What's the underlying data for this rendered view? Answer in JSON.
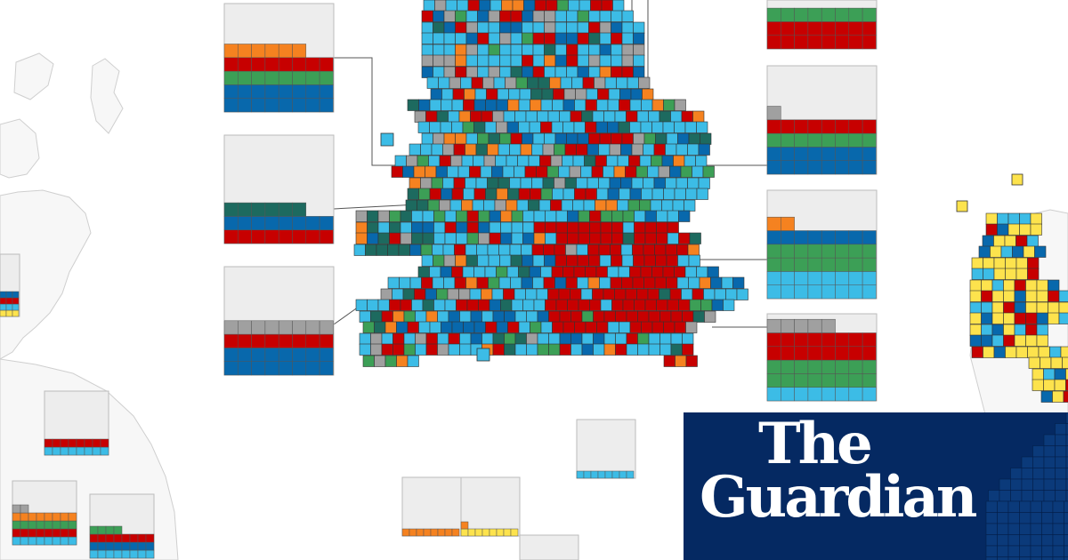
{
  "colors": {
    "conservative": "#0868ac",
    "labour": "#c70000",
    "libdem": "#f7d117",
    "green": "#3c9f56",
    "reform": "#3cbce6",
    "other": "#a0a0a0",
    "independent": "#f58220",
    "snp": "#fde34d",
    "plaid": "#1d6a5f",
    "outline": "#333333",
    "coast": "#cfcfcf",
    "panel_empty": "#ededed",
    "brand": "#052962"
  },
  "masthead": {
    "line1": "The",
    "line2": "Guardian"
  },
  "icons": {
    "logo": "guardian-logo"
  }
}
